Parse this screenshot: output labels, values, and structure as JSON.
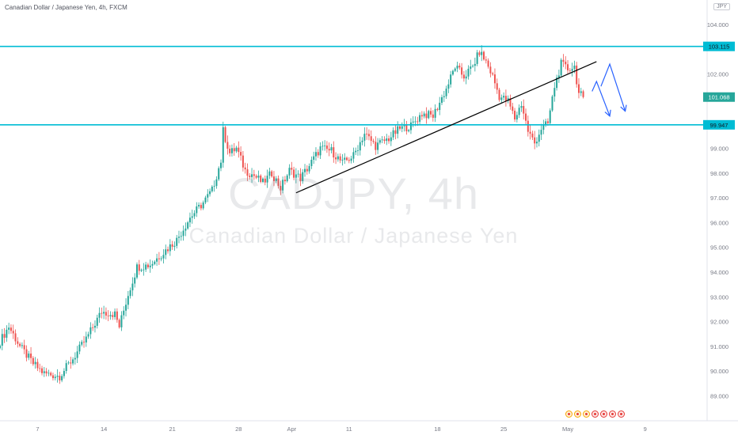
{
  "header": {
    "title": "Canadian Dollar / Japanese Yen, 4h, FXCM"
  },
  "currency_tag": "JPY",
  "watermark": {
    "symbol": "CADJPY, 4h",
    "name": "Canadian Dollar / Japanese Yen"
  },
  "colors": {
    "up": "#26a69a",
    "down": "#ef5350",
    "hline": "#00bcd4",
    "trendline": "#000000",
    "arrow": "#2962ff",
    "axis_text": "#787b86"
  },
  "chart_data": {
    "type": "candlestick",
    "title": "Canadian Dollar / Japanese Yen, 4h, FXCM",
    "ylim": [
      88.6,
      104.35
    ],
    "y_ticks": [
      89.0,
      90.0,
      91.0,
      92.0,
      93.0,
      94.0,
      95.0,
      96.0,
      97.0,
      98.0,
      99.0,
      100.0,
      101.0,
      102.0,
      104.0
    ],
    "y_tick_labels": [
      "89.000",
      "90.000",
      "91.000",
      "92.000",
      "93.000",
      "94.000",
      "95.000",
      "96.000",
      "97.000",
      "98.000",
      "99.000",
      "100.000",
      "101.000",
      "102.000",
      "104.000"
    ],
    "x_labels": [
      "7",
      "14",
      "21",
      "28",
      "Apr",
      "11",
      "18",
      "25",
      "May",
      "9"
    ],
    "key_points": [
      {
        "x": 0,
        "y": 91.2
      },
      {
        "x": 4,
        "y": 91.8
      },
      {
        "x": 9,
        "y": 91.0
      },
      {
        "x": 15,
        "y": 90.3
      },
      {
        "x": 20,
        "y": 89.9
      },
      {
        "x": 27,
        "y": 89.8
      },
      {
        "x": 33,
        "y": 90.5
      },
      {
        "x": 39,
        "y": 91.3
      },
      {
        "x": 46,
        "y": 92.4
      },
      {
        "x": 52,
        "y": 92.3
      },
      {
        "x": 54,
        "y": 91.8
      },
      {
        "x": 58,
        "y": 93.1
      },
      {
        "x": 62,
        "y": 94.2
      },
      {
        "x": 68,
        "y": 94.3
      },
      {
        "x": 74,
        "y": 94.8
      },
      {
        "x": 80,
        "y": 95.3
      },
      {
        "x": 86,
        "y": 96.2
      },
      {
        "x": 92,
        "y": 96.8
      },
      {
        "x": 96,
        "y": 97.3
      },
      {
        "x": 100,
        "y": 98.5
      },
      {
        "x": 101,
        "y": 99.7
      },
      {
        "x": 104,
        "y": 98.8
      },
      {
        "x": 107,
        "y": 99.0
      },
      {
        "x": 111,
        "y": 98.1
      },
      {
        "x": 115,
        "y": 97.9
      },
      {
        "x": 119,
        "y": 97.6
      },
      {
        "x": 123,
        "y": 98.0
      },
      {
        "x": 127,
        "y": 97.4
      },
      {
        "x": 131,
        "y": 98.1
      },
      {
        "x": 136,
        "y": 97.8
      },
      {
        "x": 140,
        "y": 98.3
      },
      {
        "x": 145,
        "y": 99.0
      },
      {
        "x": 150,
        "y": 98.9
      },
      {
        "x": 155,
        "y": 98.4
      },
      {
        "x": 160,
        "y": 98.7
      },
      {
        "x": 165,
        "y": 99.6
      },
      {
        "x": 170,
        "y": 99.1
      },
      {
        "x": 176,
        "y": 99.4
      },
      {
        "x": 181,
        "y": 99.8
      },
      {
        "x": 186,
        "y": 99.9
      },
      {
        "x": 191,
        "y": 100.4
      },
      {
        "x": 196,
        "y": 100.3
      },
      {
        "x": 202,
        "y": 101.4
      },
      {
        "x": 206,
        "y": 102.3
      },
      {
        "x": 210,
        "y": 101.9
      },
      {
        "x": 214,
        "y": 102.3
      },
      {
        "x": 217,
        "y": 102.9
      },
      {
        "x": 220,
        "y": 102.5
      },
      {
        "x": 223,
        "y": 101.9
      },
      {
        "x": 226,
        "y": 101.1
      },
      {
        "x": 230,
        "y": 100.9
      },
      {
        "x": 233,
        "y": 100.2
      },
      {
        "x": 236,
        "y": 100.8
      },
      {
        "x": 239,
        "y": 99.7
      },
      {
        "x": 242,
        "y": 99.2
      },
      {
        "x": 245,
        "y": 99.8
      },
      {
        "x": 248,
        "y": 100.0
      },
      {
        "x": 251,
        "y": 101.5
      },
      {
        "x": 254,
        "y": 102.4
      },
      {
        "x": 257,
        "y": 102.2
      },
      {
        "x": 260,
        "y": 102.3
      },
      {
        "x": 262,
        "y": 101.2
      },
      {
        "x": 264,
        "y": 101.07
      }
    ],
    "last_price": 101.068
  },
  "drawings": {
    "resistance": {
      "price": 103.115,
      "label": "103.115"
    },
    "support": {
      "price": 99.947,
      "label": "99.947"
    },
    "last_price_label": "101.068",
    "trendline": {
      "from": {
        "x": 134,
        "y": 97.2
      },
      "to": {
        "x": 270,
        "y": 102.5
      }
    },
    "projection_a": [
      {
        "x": 272,
        "y": 101.5
      },
      {
        "x": 276,
        "y": 102.4
      },
      {
        "x": 283,
        "y": 100.5
      }
    ],
    "projection_b": [
      {
        "x": 268,
        "y": 101.3
      },
      {
        "x": 270,
        "y": 101.7
      },
      {
        "x": 276,
        "y": 100.3
      }
    ]
  },
  "event_icons": [
    "jp-event-icon",
    "jp-event-icon",
    "jp-event-icon",
    "ca-event-icon",
    "ca-event-icon",
    "ca-event-icon",
    "ca-event-icon"
  ]
}
